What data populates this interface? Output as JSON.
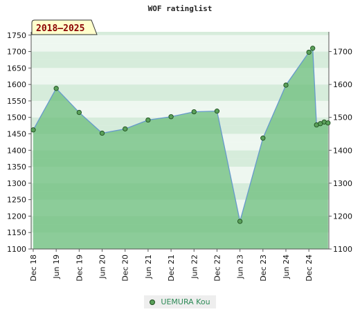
{
  "chart_data": {
    "type": "area",
    "title": "WOF ratinglist",
    "badge": "2018–2025",
    "ylim": [
      1100,
      1760
    ],
    "y_ticks_left": [
      1100,
      1150,
      1200,
      1250,
      1300,
      1350,
      1400,
      1450,
      1500,
      1550,
      1600,
      1650,
      1700,
      1750
    ],
    "y_ticks_right": [
      1100,
      1200,
      1300,
      1400,
      1500,
      1600,
      1700
    ],
    "x_tick_labels": [
      "Dec 18",
      "Jun 19",
      "Dec 19",
      "Jun 20",
      "Dec 20",
      "Jun 21",
      "Dec 21",
      "Jun 22",
      "Dec 22",
      "Jun 23",
      "Dec 23",
      "Jun 24",
      "Dec 24"
    ],
    "series": [
      {
        "name": "UEMURA Kou",
        "points": [
          [
            "2018-12",
            1462
          ],
          [
            "2019-06",
            1588
          ],
          [
            "2019-12",
            1515
          ],
          [
            "2020-06",
            1452
          ],
          [
            "2020-12",
            1465
          ],
          [
            "2021-06",
            1492
          ],
          [
            "2021-12",
            1502
          ],
          [
            "2022-06",
            1517
          ],
          [
            "2022-12",
            1519
          ],
          [
            "2023-06",
            1184
          ],
          [
            "2023-12",
            1437
          ],
          [
            "2024-06",
            1598
          ],
          [
            "2024-12",
            1698
          ],
          [
            "2025-01",
            1710
          ],
          [
            "2025-02",
            1477
          ],
          [
            "2025-03",
            1481
          ],
          [
            "2025-04",
            1486
          ],
          [
            "2025-05",
            1483
          ]
        ]
      }
    ],
    "grid": true,
    "legend_position": "bottom"
  },
  "colors": {
    "line": "#6699cc",
    "fill": "#66bb77",
    "marker_fill": "#5aa05a",
    "marker_stroke": "#1d4d1d",
    "badge_bg": "#ffffcc",
    "badge_text": "#8b0000"
  }
}
